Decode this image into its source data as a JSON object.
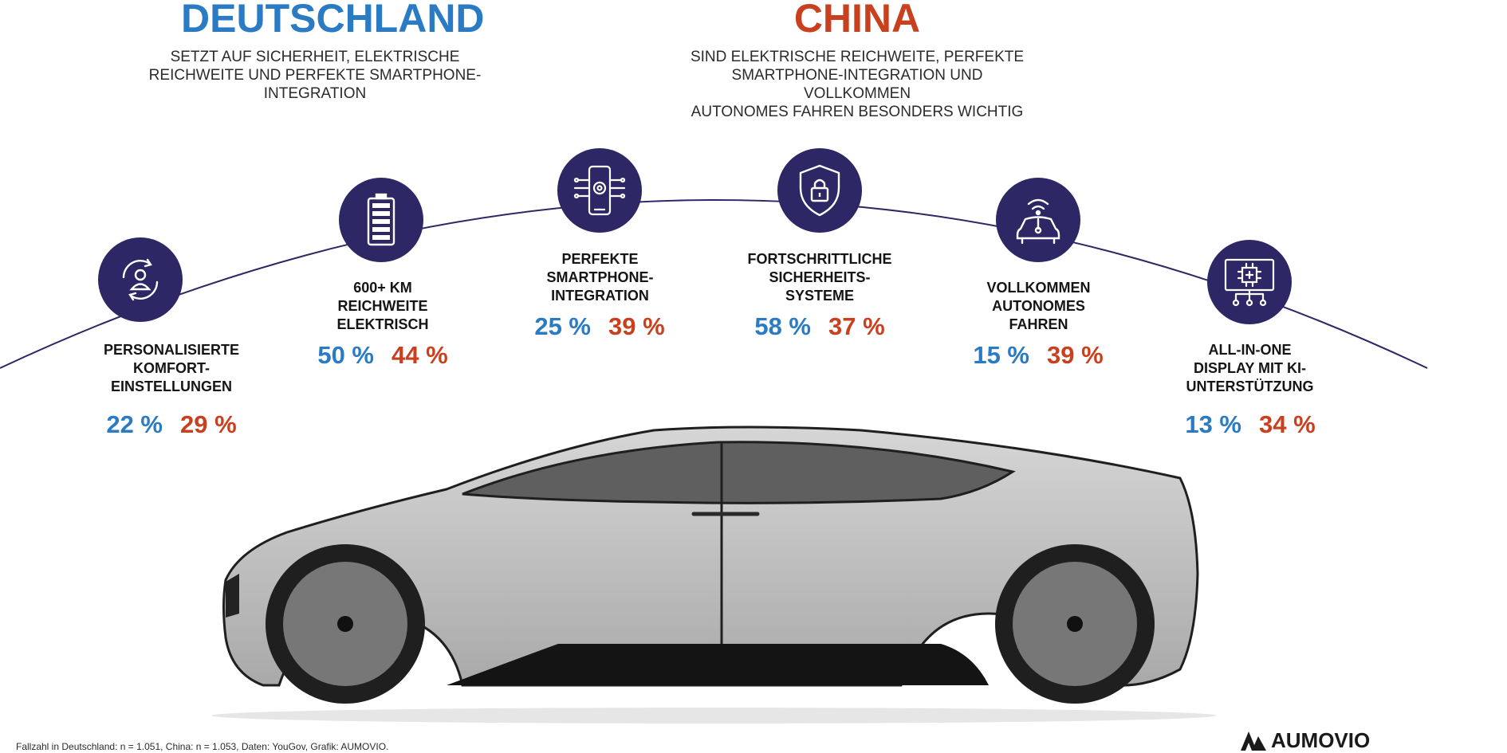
{
  "germany": {
    "title": "DEUTSCHLAND",
    "subtitle_line1": "SETZT AUF SICHERHEIT, ELEKTRISCHE",
    "subtitle_line2": "REICHWEITE UND PERFEKTE SMARTPHONE-INTEGRATION",
    "color": "#2a7bc4"
  },
  "china": {
    "title": "CHINA",
    "subtitle_line1": "SIND ELEKTRISCHE REICHWEITE, PERFEKTE",
    "subtitle_line2": "SMARTPHONE-INTEGRATION UND VOLLKOMMEN",
    "subtitle_line3": "AUTONOMES FAHREN BESONDERS WICHTIG",
    "color": "#c9401e"
  },
  "icon_color": "#2d2766",
  "features": [
    {
      "icon": "person-cycle-icon",
      "label_lines": [
        "PERSONALISIERTE",
        "KOMFORT-",
        "EINSTELLUNGEN"
      ],
      "de": "22 %",
      "cn": "29 %"
    },
    {
      "icon": "battery-icon",
      "label_lines": [
        "600+ KM",
        "REICHWEITE",
        "ELEKTRISCH"
      ],
      "de": "50 %",
      "cn": "44 %"
    },
    {
      "icon": "smartphone-icon",
      "label_lines": [
        "PERFEKTE",
        "SMARTPHONE-",
        "INTEGRATION"
      ],
      "de": "25 %",
      "cn": "39 %"
    },
    {
      "icon": "shield-lock-icon",
      "label_lines": [
        "FORTSCHRITTLICHE",
        "SICHERHEITS-",
        "SYSTEME"
      ],
      "de": "58 %",
      "cn": "37 %"
    },
    {
      "icon": "autonomous-car-icon",
      "label_lines": [
        "VOLLKOMMEN",
        "AUTONOMES",
        "FAHREN"
      ],
      "de": "15 %",
      "cn": "39 %"
    },
    {
      "icon": "display-chip-icon",
      "label_lines": [
        "ALL-IN-ONE",
        "DISPLAY MIT KI-",
        "UNTERSTÜTZUNG"
      ],
      "de": "13 %",
      "cn": "34 %"
    }
  ],
  "footnote": "Fallzahl in Deutschland: n = 1.051, China: n = 1.053, Daten: YouGov, Grafik: AUMOVIO.",
  "brand": "AUMOVIO"
}
